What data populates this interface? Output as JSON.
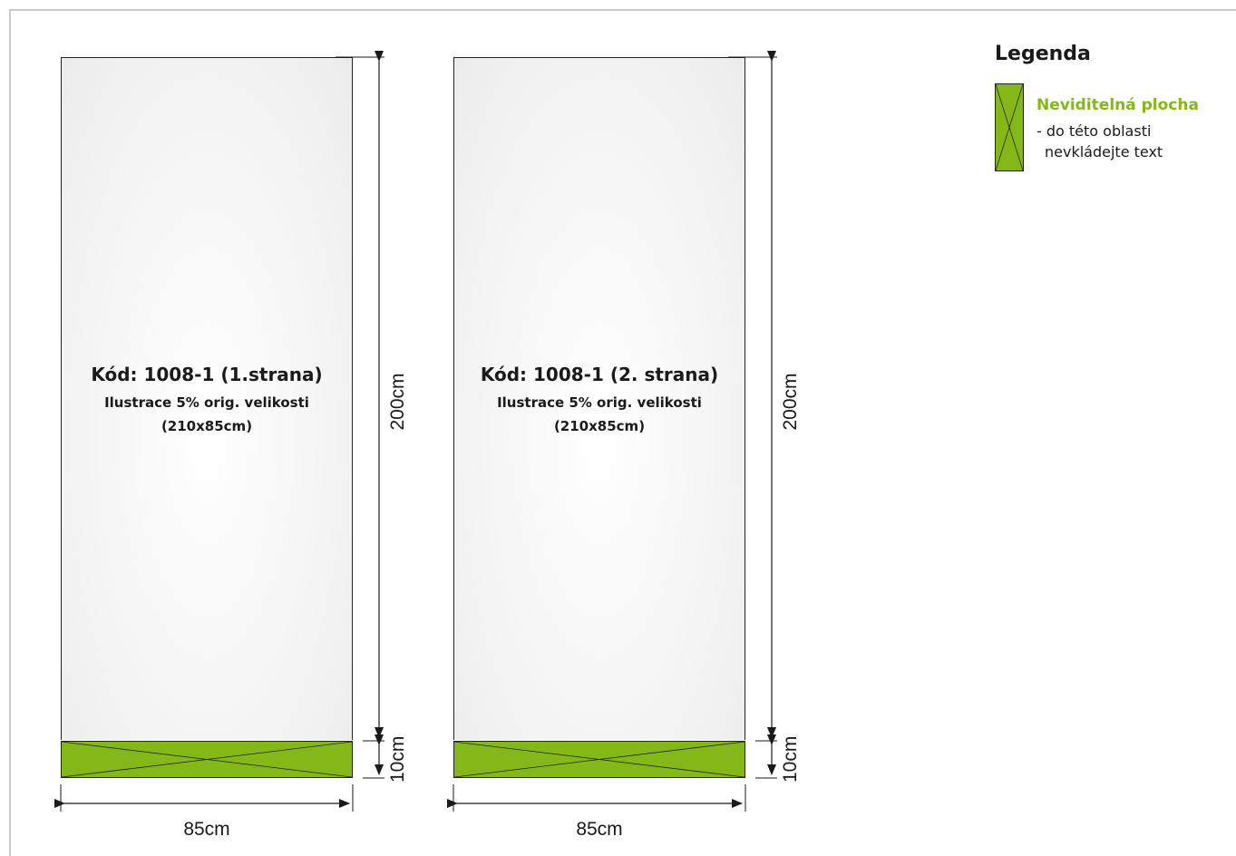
{
  "panels": [
    {
      "code": "Kód: 1008-1 (1.strana)",
      "illustration": "Ilustrace 5% orig. velikosti",
      "size": "(210x85cm)",
      "height_label": "200cm",
      "zone_label": "10cm",
      "width_label": "85cm"
    },
    {
      "code": "Kód: 1008-1 (2. strana)",
      "illustration": "Ilustrace 5% orig. velikosti",
      "size": "(210x85cm)",
      "height_label": "200cm",
      "zone_label": "10cm",
      "width_label": "85cm"
    }
  ],
  "legend": {
    "title": "Legenda",
    "item_name": "Neviditelná plocha",
    "item_desc_line1": "- do této oblasti",
    "item_desc_line2": "nevkládejte text"
  },
  "colors": {
    "invisible_zone": "#84b818",
    "panel_background": "#f2f2f2",
    "line": "#222222"
  }
}
